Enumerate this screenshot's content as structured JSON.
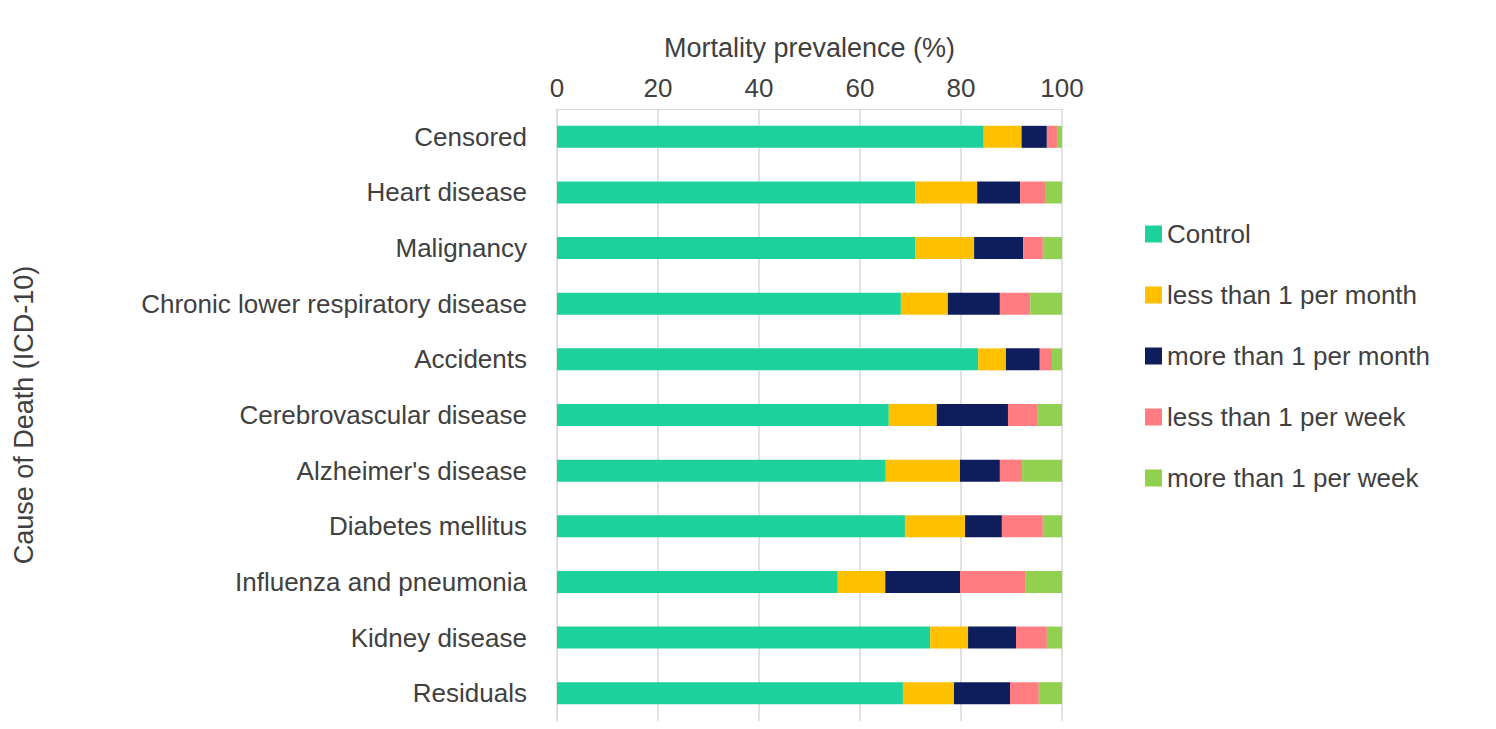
{
  "chart_data": {
    "type": "bar",
    "orientation": "horizontal",
    "stacked": true,
    "grid": true,
    "legend": "right",
    "xlabel": "Mortality prevalence (%)",
    "ylabel": "Cause of Death (ICD-10)",
    "categories": [
      "Censored",
      "Heart disease",
      "Malignancy",
      "Chronic lower respiratory disease",
      "Accidents",
      "Cerebrovascular disease",
      "Alzheimer's disease",
      "Diabetes mellitus",
      "Influenza and pneumonia",
      "Kidney disease",
      "Residuals"
    ],
    "xlim": [
      0,
      100
    ],
    "xticks": [
      0,
      20,
      40,
      60,
      80,
      100
    ],
    "series": [
      {
        "name": "Control",
        "color": "#1dd19c",
        "values": [
          84.5,
          71,
          71,
          68.1,
          83.4,
          65.7,
          65.1,
          68.9,
          55.6,
          73.9,
          68.5
        ]
      },
      {
        "name": "less than 1 per month",
        "color": "#ffc000",
        "values": [
          7.5,
          12.2,
          11.6,
          9.3,
          5.5,
          9.5,
          14.7,
          11.9,
          9.4,
          7.5,
          10.1
        ]
      },
      {
        "name": "more than 1 per month",
        "color": "#0e1d5c",
        "values": [
          5,
          8.5,
          9.7,
          10.3,
          6.7,
          14.1,
          7.9,
          7.3,
          14.8,
          9.5,
          11.1
        ]
      },
      {
        "name": "less than 1 per week",
        "color": "#ff7c80",
        "values": [
          2,
          5.1,
          3.9,
          6,
          2.4,
          5.9,
          4.4,
          8.1,
          12.9,
          6.1,
          5.7
        ]
      },
      {
        "name": "more than 1 per week",
        "color": "#92d050",
        "values": [
          1,
          3.2,
          3.8,
          6.3,
          2,
          4.8,
          7.9,
          3.8,
          7.3,
          3,
          4.6
        ]
      }
    ]
  }
}
